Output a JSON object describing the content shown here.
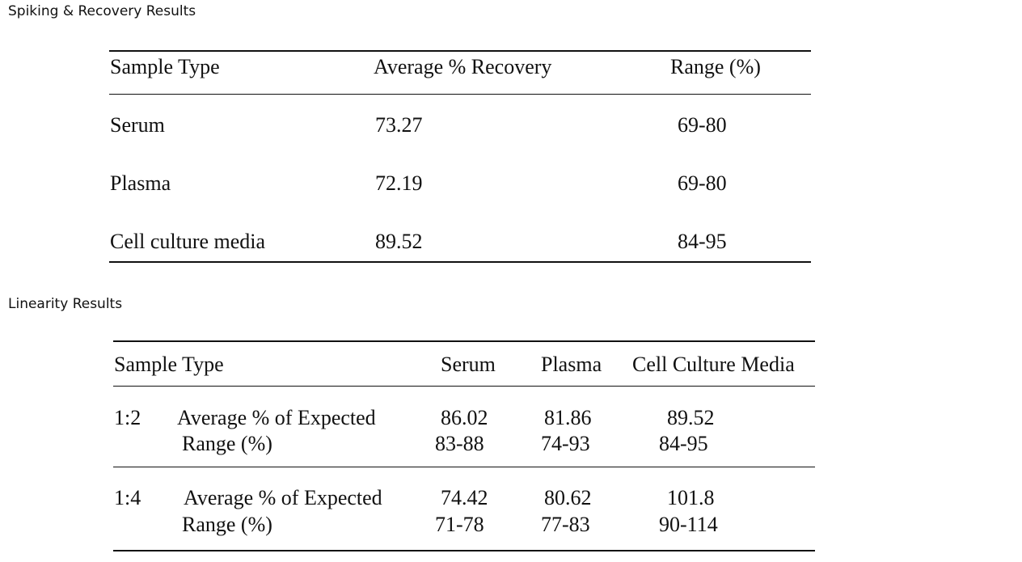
{
  "spiking": {
    "title": "Spiking & Recovery Results",
    "headers": [
      "Sample Type",
      "Average % Recovery",
      "Range (%)"
    ],
    "rows": [
      {
        "type": "Serum",
        "avg": "73.27",
        "range": "69-80"
      },
      {
        "type": "Plasma",
        "avg": "72.19",
        "range": "69-80"
      },
      {
        "type": "Cell culture media",
        "avg": "89.52",
        "range": "84-95"
      }
    ]
  },
  "linearity": {
    "title": "Linearity Results",
    "headers": [
      "Sample Type",
      "Serum",
      "Plasma",
      "Cell Culture Media"
    ],
    "groups": [
      {
        "dilution": "1:2",
        "avg_label": "Average % of Expected",
        "range_label": "Range (%)",
        "serum_avg": "86.02",
        "serum_range": "83-88",
        "plasma_avg": "81.86",
        "plasma_range": "74-93",
        "ccm_avg": "89.52",
        "ccm_range": "84-95"
      },
      {
        "dilution": "1:4",
        "avg_label": "Average % of Expected",
        "range_label": "Range (%)",
        "serum_avg": "74.42",
        "serum_range": "71-78",
        "plasma_avg": "80.62",
        "plasma_range": "77-83",
        "ccm_avg": "101.8",
        "ccm_range": "90-114"
      }
    ]
  }
}
